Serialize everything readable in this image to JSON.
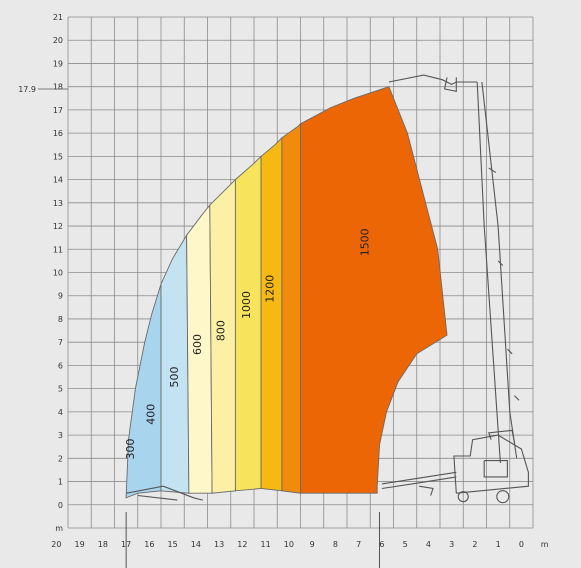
{
  "chart_data": {
    "type": "load-chart",
    "y_ticks": [
      "0",
      "1",
      "2",
      "3",
      "4",
      "5",
      "6",
      "7",
      "8",
      "9",
      "10",
      "11",
      "12",
      "13",
      "14",
      "15",
      "16",
      "17",
      "18",
      "19",
      "20",
      "21"
    ],
    "y_unit": "m",
    "y_marker": {
      "label": "17.9",
      "value": 17.9
    },
    "x_ticks": [
      "20",
      "19",
      "18",
      "17",
      "16",
      "15",
      "14",
      "13",
      "12",
      "11",
      "10",
      "9",
      "8",
      "7",
      "6",
      "5",
      "4",
      "3",
      "2",
      "1",
      "0"
    ],
    "x_unit": "m",
    "zones": [
      {
        "label": "300",
        "color": "#a8d4ee"
      },
      {
        "label": "400",
        "color": "#c4e3f2"
      },
      {
        "label": "500",
        "color": "#fdf7c9"
      },
      {
        "label": "600",
        "color": "#fbf0a4"
      },
      {
        "label": "800",
        "color": "#f8e45c"
      },
      {
        "label": "1000",
        "color": "#f6b813"
      },
      {
        "label": "1200",
        "color": "#f28a0b"
      },
      {
        "label": "1500",
        "color": "#ec6605"
      }
    ]
  }
}
